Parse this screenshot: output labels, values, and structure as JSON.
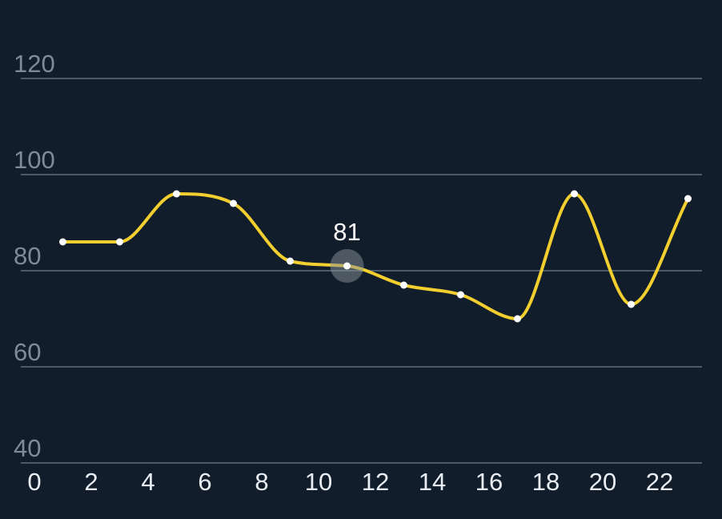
{
  "chart_data": {
    "type": "line",
    "title": "",
    "xlabel": "",
    "ylabel": "",
    "xlim": [
      0,
      24
    ],
    "ylim": [
      40,
      120
    ],
    "x_ticks": [
      "0",
      "2",
      "4",
      "6",
      "8",
      "10",
      "12",
      "14",
      "16",
      "18",
      "20",
      "22"
    ],
    "y_ticks": [
      "40",
      "60",
      "80",
      "100",
      "120"
    ],
    "grid": true,
    "series": [
      {
        "color": "#f2cf2e",
        "x": [
          1,
          3,
          5,
          7,
          9,
          11,
          13,
          15,
          17,
          19,
          21,
          23
        ],
        "y": [
          86,
          86,
          96,
          94,
          82,
          81,
          77,
          75,
          70,
          96,
          73,
          95
        ]
      }
    ],
    "highlight": {
      "x": 11,
      "y": 81,
      "label": "81"
    }
  }
}
